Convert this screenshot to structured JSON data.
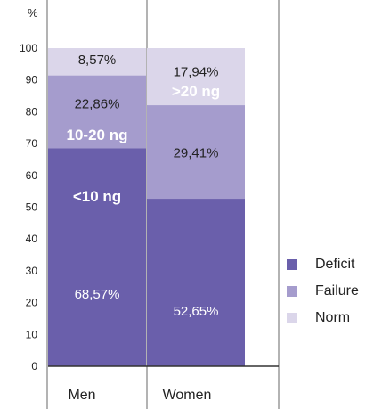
{
  "chart_data": {
    "type": "bar",
    "stacked": true,
    "y_unit_label": "%",
    "ylim": [
      0,
      100
    ],
    "yticks": [
      0,
      10,
      20,
      30,
      40,
      50,
      60,
      70,
      80,
      90,
      100
    ],
    "grid": false,
    "legend_position": "bottom-right",
    "categories": [
      "Men",
      "Women"
    ],
    "series": [
      {
        "name": "Deficit",
        "color": "#6a5fab",
        "values": [
          68.57,
          52.65
        ],
        "labels": [
          "68,57%",
          "52,65%"
        ]
      },
      {
        "name": "Failure",
        "color": "#a59ccd",
        "values": [
          22.86,
          29.41
        ],
        "labels": [
          "22,86%",
          "29,41%"
        ]
      },
      {
        "name": "Norm",
        "color": "#dbd6ea",
        "values": [
          8.57,
          17.94
        ],
        "labels": [
          "8,57%",
          "17,94%"
        ]
      }
    ],
    "annotations": [
      {
        "text": "<10 ng",
        "category": "Men",
        "y": 53.5
      },
      {
        "text": "10-20 ng",
        "category": "Men",
        "y": 72.8
      },
      {
        "text": ">20 ng",
        "category": "Women",
        "y": 86.5
      }
    ]
  }
}
